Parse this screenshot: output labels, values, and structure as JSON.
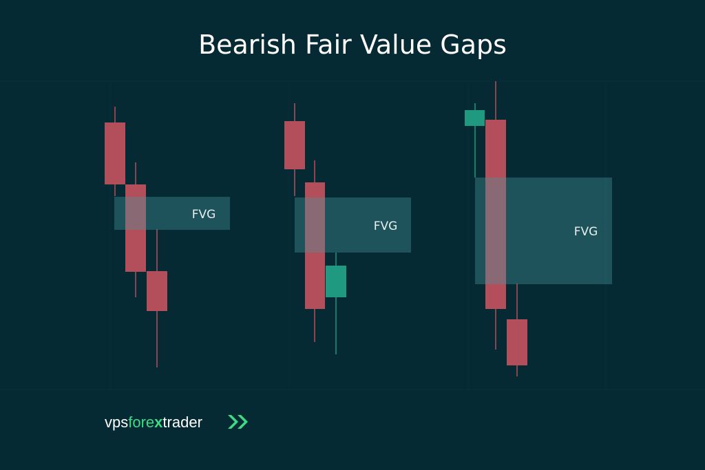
{
  "title": "Bearish Fair Value Gaps",
  "panels": [
    {
      "label": "FVG"
    },
    {
      "label": "FVG"
    },
    {
      "label": "FVG"
    }
  ],
  "logo": {
    "parts": [
      "vps",
      "fore",
      "x",
      "trader"
    ]
  }
}
